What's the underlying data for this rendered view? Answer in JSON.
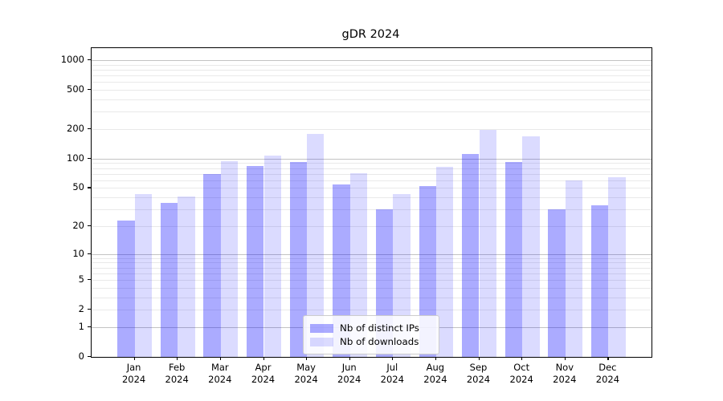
{
  "title": "gDR 2024",
  "chart_data": {
    "type": "bar",
    "title": "gDR 2024",
    "scale": "log1p",
    "categories": [
      "Jan",
      "Feb",
      "Mar",
      "Apr",
      "May",
      "Jun",
      "Jul",
      "Aug",
      "Sep",
      "Oct",
      "Nov",
      "Dec"
    ],
    "year_label": "2024",
    "series": [
      {
        "name": "Nb of distinct IPs",
        "color": "rgba(0,0,255,0.33)",
        "values": [
          23,
          35,
          70,
          84,
          92,
          54,
          30,
          52,
          111,
          92,
          30,
          33
        ]
      },
      {
        "name": "Nb of downloads",
        "color": "rgba(0,0,255,0.14)",
        "values": [
          43,
          41,
          94,
          107,
          180,
          71,
          43,
          83,
          196,
          168,
          60,
          64
        ]
      }
    ],
    "y_ticks": [
      0,
      1,
      2,
      5,
      10,
      20,
      50,
      100,
      200,
      500,
      1000
    ],
    "y_major_gridlines": [
      1,
      10,
      100,
      1000
    ],
    "y_minor_gridlines": [
      2,
      3,
      4,
      5,
      6,
      7,
      8,
      9,
      20,
      30,
      40,
      50,
      60,
      70,
      80,
      90,
      200,
      300,
      400,
      500,
      600,
      700,
      800,
      900
    ],
    "ylim": [
      0,
      1326
    ],
    "ylim_top_transform": 3.122,
    "xlabel": "",
    "ylabel": "",
    "grid": true,
    "legend_position": "lower-center",
    "legend_items": [
      "Nb of distinct IPs",
      "Nb of downloads"
    ]
  }
}
